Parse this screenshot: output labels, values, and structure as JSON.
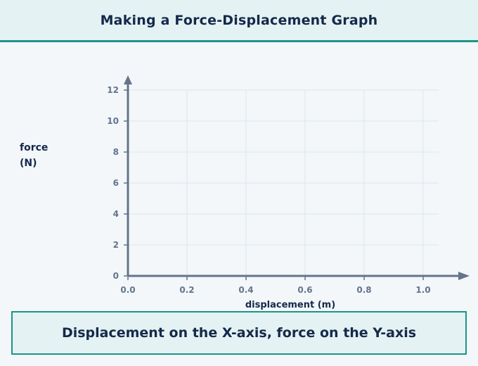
{
  "header": {
    "title": "Making a Force-Displacement Graph"
  },
  "caption": {
    "text": "Displacement on the X-axis, force on the Y-axis"
  },
  "colors": {
    "accent": "#1c9488",
    "header_bg": "#e4f2f3",
    "text": "#15294a",
    "axis": "#64748b",
    "grid": "#dfe5ea"
  },
  "chart_data": {
    "type": "scatter",
    "title": "",
    "xlabel": "displacement (m)",
    "ylabel_lines": [
      "force",
      "(N)"
    ],
    "xlim": [
      0,
      1.0
    ],
    "ylim": [
      0,
      12
    ],
    "x_ticks": [
      "0.0",
      "0.2",
      "0.4",
      "0.6",
      "0.8",
      "1.0"
    ],
    "y_ticks": [
      "0",
      "2",
      "4",
      "6",
      "8",
      "10",
      "12"
    ],
    "grid": true,
    "series": []
  }
}
